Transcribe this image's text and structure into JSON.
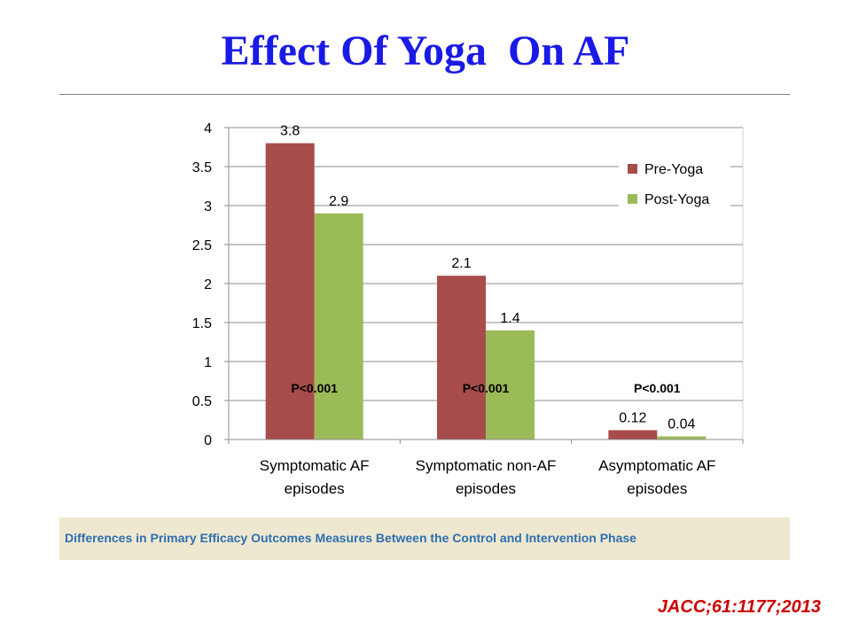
{
  "slide": {
    "title": "Effect Of Yoga  On AF",
    "caption": "Differences in Primary Efficacy Outcomes Measures Between the Control and Intervention Phase",
    "citation": "JACC;61:1177;2013"
  },
  "chart_data": {
    "type": "bar",
    "categories": [
      [
        "Symptomatic AF",
        "episodes"
      ],
      [
        "Symptomatic non-AF",
        "episodes"
      ],
      [
        "Asymptomatic AF",
        "episodes"
      ]
    ],
    "series": [
      {
        "name": "Pre-Yoga",
        "color": "#a84c4b",
        "values": [
          3.8,
          2.1,
          0.12
        ],
        "labels": [
          "3.8",
          "2.1",
          "0.12"
        ]
      },
      {
        "name": "Post-Yoga",
        "color": "#9bbb59",
        "values": [
          2.9,
          1.4,
          0.04
        ],
        "labels": [
          "2.9",
          "1.4",
          "0.04"
        ]
      }
    ],
    "annotations": [
      "P<0.001",
      "P<0.001",
      "P<0.001"
    ],
    "yticks": [
      "0",
      "0.5",
      "1",
      "1.5",
      "2",
      "2.5",
      "3",
      "3.5",
      "4"
    ],
    "ylim": [
      0,
      4
    ],
    "grid": true,
    "legend": "top-right"
  }
}
